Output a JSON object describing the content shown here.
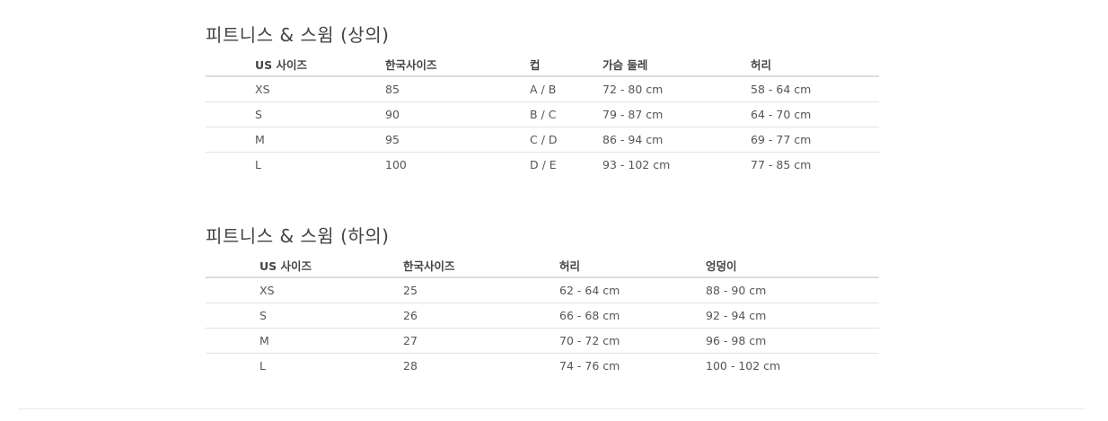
{
  "tops": {
    "title": "피트니스 & 스윔 (상의)",
    "headers": [
      "US 사이즈",
      "한국사이즈",
      "컵",
      "가슴 둘레",
      "허리"
    ],
    "rows": [
      [
        "XS",
        "85",
        "A / B",
        "72 - 80 cm",
        "58 - 64 cm"
      ],
      [
        "S",
        "90",
        "B / C",
        "79 - 87 cm",
        "64 - 70 cm"
      ],
      [
        "M",
        "95",
        "C / D",
        "86 - 94 cm",
        "69 - 77 cm"
      ],
      [
        "L",
        "100",
        "D / E",
        "93 - 102 cm",
        "77 - 85 cm"
      ]
    ]
  },
  "bottoms": {
    "title": "피트니스 & 스윔 (하의)",
    "headers": [
      "US 사이즈",
      "한국사이즈",
      "허리",
      "엉덩이"
    ],
    "rows": [
      [
        "XS",
        "25",
        "62 - 64 cm",
        "88 - 90 cm"
      ],
      [
        "S",
        "26",
        "66 - 68 cm",
        "92 - 94 cm"
      ],
      [
        "M",
        "27",
        "70 - 72 cm",
        "96 - 98 cm"
      ],
      [
        "L",
        "28",
        "74 - 76 cm",
        "100 - 102 cm"
      ]
    ]
  }
}
